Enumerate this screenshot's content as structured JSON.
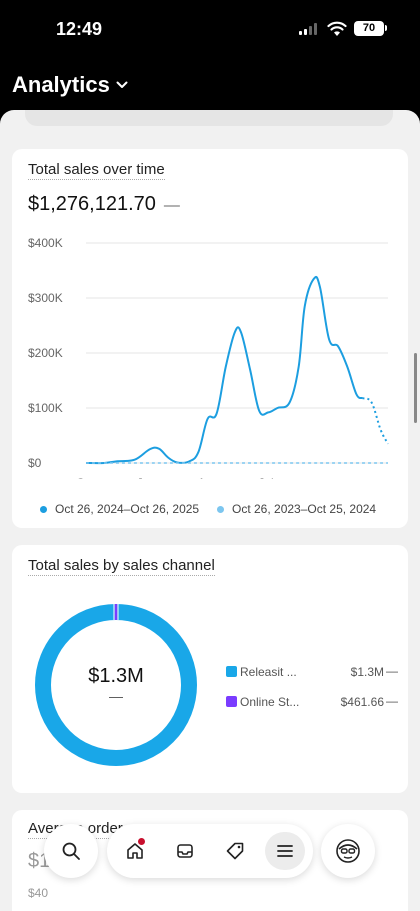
{
  "status": {
    "time": "12:49",
    "battery": "70"
  },
  "header": {
    "title": "Analytics"
  },
  "sales_card": {
    "title": "Total sales over time",
    "value": "$1,276,121.70",
    "change": "—",
    "legend": [
      {
        "label": "Oct 26, 2024–Oct 26, 2025",
        "color": "#1c9ee0"
      },
      {
        "label": "Oct 26, 2023–Oct 25, 2024",
        "color": "#7cc6ef"
      }
    ]
  },
  "chart_data": {
    "type": "line",
    "x": [
      "Oct",
      "Jan",
      "Apr",
      "Jul"
    ],
    "y_ticks": [
      "$400K",
      "$300K",
      "$200K",
      "$100K",
      "$0"
    ],
    "ylim": [
      0,
      400000
    ],
    "grid": true,
    "legend_position": "bottom",
    "series": [
      {
        "name": "Oct 26, 2024–Oct 26, 2025",
        "color": "#1c9ee0",
        "points": [
          [
            0,
            0
          ],
          [
            0.3,
            0
          ],
          [
            0.5,
            3000
          ],
          [
            0.8,
            6000
          ],
          [
            1.05,
            25000
          ],
          [
            1.2,
            26000
          ],
          [
            1.35,
            10000
          ],
          [
            1.5,
            1000
          ],
          [
            1.7,
            3000
          ],
          [
            1.85,
            20000
          ],
          [
            2.0,
            80000
          ],
          [
            2.15,
            90000
          ],
          [
            2.3,
            175000
          ],
          [
            2.45,
            238000
          ],
          [
            2.55,
            238000
          ],
          [
            2.7,
            170000
          ],
          [
            2.85,
            95000
          ],
          [
            3.0,
            92000
          ],
          [
            3.15,
            100000
          ],
          [
            3.35,
            110000
          ],
          [
            3.5,
            175000
          ],
          [
            3.6,
            285000
          ],
          [
            3.75,
            335000
          ],
          [
            3.85,
            320000
          ],
          [
            4.0,
            225000
          ],
          [
            4.15,
            212000
          ],
          [
            4.3,
            175000
          ],
          [
            4.45,
            125000
          ],
          [
            4.55,
            118000
          ]
        ],
        "dotted_tail": [
          [
            4.55,
            118000
          ],
          [
            4.7,
            110000
          ],
          [
            4.85,
            60000
          ],
          [
            4.97,
            35000
          ]
        ]
      },
      {
        "name": "Oct 26, 2023–Oct 25, 2024",
        "color": "#7cc6ef",
        "dashed": true,
        "points": [
          [
            0,
            0
          ],
          [
            4.97,
            0
          ]
        ]
      }
    ]
  },
  "channel_card": {
    "title": "Total sales by sales channel",
    "center_value": "$1.3M",
    "center_change": "—",
    "channels": [
      {
        "label": "Releasit ...",
        "value": "$1.3M",
        "change": "—",
        "color": "#19a7e8"
      },
      {
        "label": "Online St...",
        "value": "$461.66",
        "change": "—",
        "color": "#7a3cff"
      }
    ]
  },
  "next_card": {
    "title": "Average order",
    "value": "$1",
    "axis_top": "$40"
  },
  "nav": {
    "icons": [
      "search-icon",
      "home-icon",
      "inbox-icon",
      "tag-icon",
      "menu-icon",
      "avatar-icon"
    ]
  }
}
